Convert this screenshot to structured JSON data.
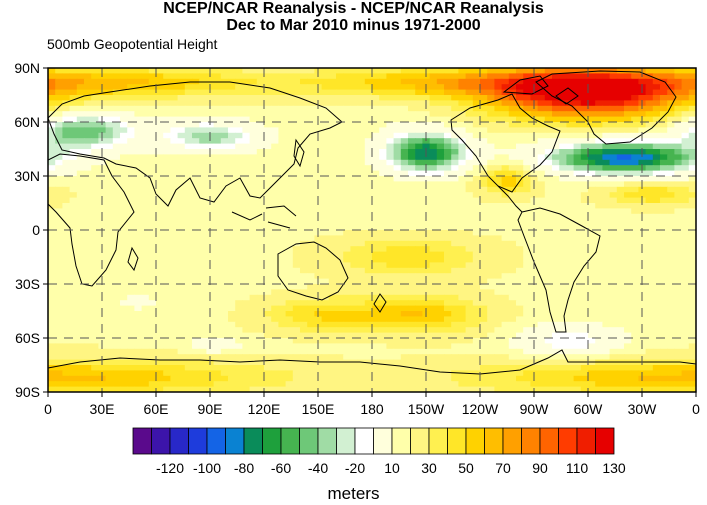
{
  "title_line1": "NCEP/NCAR Reanalysis - NCEP/NCAR Reanalysis",
  "title_line2": "Dec to Mar 2010 minus 1971-2000",
  "subtitle": "500mb Geopotential Height",
  "units": "meters",
  "lat_ticks": [
    "90N",
    "60N",
    "30N",
    "0",
    "30S",
    "60S",
    "90S"
  ],
  "lon_ticks": [
    "0",
    "30E",
    "60E",
    "90E",
    "120E",
    "150E",
    "180",
    "150W",
    "120W",
    "90W",
    "60W",
    "30W",
    "0"
  ],
  "colorbar": {
    "colors": [
      "#5a0a8c",
      "#3c14aa",
      "#2828c8",
      "#1e3cdc",
      "#1464e6",
      "#0a82d2",
      "#0a8c5a",
      "#1ea03c",
      "#46b450",
      "#6ec878",
      "#a0dca5",
      "#d2f0d2",
      "#ffffff",
      "#ffffdc",
      "#ffffaa",
      "#fff582",
      "#fff050",
      "#ffe628",
      "#ffd200",
      "#ffbe00",
      "#ffa000",
      "#ff8200",
      "#ff6400",
      "#ff3c00",
      "#f01e00",
      "#e60000"
    ],
    "labels": [
      "-120",
      "-100",
      "-80",
      "-60",
      "-40",
      "-20",
      "10",
      "30",
      "50",
      "70",
      "90",
      "110",
      "130"
    ]
  },
  "anomaly_field": {
    "background_value": 18,
    "features": [
      {
        "lon": 20,
        "lat": 55,
        "value": -68,
        "radius_lon": 28,
        "radius_lat": 10
      },
      {
        "lon": 90,
        "lat": 52,
        "value": -55,
        "radius_lon": 28,
        "radius_lat": 8
      },
      {
        "lon": 210,
        "lat": 43,
        "value": -98,
        "radius_lon": 22,
        "radius_lat": 11
      },
      {
        "lon": 320,
        "lat": 40,
        "value": -110,
        "radius_lon": 42,
        "radius_lat": 9
      },
      {
        "lon": 300,
        "lat": 76,
        "value": 115,
        "radius_lon": 55,
        "radius_lat": 14
      },
      {
        "lon": 230,
        "lat": 82,
        "value": 45,
        "radius_lon": 90,
        "radius_lat": 8
      },
      {
        "lon": 40,
        "lat": 82,
        "value": 42,
        "radius_lon": 70,
        "radius_lat": 8
      },
      {
        "lon": 290,
        "lat": -62,
        "value": -38,
        "radius_lon": 28,
        "radius_lat": 9
      },
      {
        "lon": 92,
        "lat": -64,
        "value": -25,
        "radius_lon": 14,
        "radius_lat": 4
      },
      {
        "lon": 205,
        "lat": -47,
        "value": 42,
        "radius_lon": 35,
        "radius_lat": 10
      },
      {
        "lon": 150,
        "lat": -47,
        "value": 30,
        "radius_lon": 30,
        "radius_lat": 9
      },
      {
        "lon": 0,
        "lat": -82,
        "value": 45,
        "radius_lon": 120,
        "radius_lat": 10
      },
      {
        "lon": 50,
        "lat": -40,
        "value": -10,
        "radius_lon": 18,
        "radius_lat": 8
      },
      {
        "lon": 200,
        "lat": -15,
        "value": 30,
        "radius_lon": 40,
        "radius_lat": 10
      },
      {
        "lon": 255,
        "lat": 28,
        "value": 38,
        "radius_lon": 15,
        "radius_lat": 8
      },
      {
        "lon": 335,
        "lat": 20,
        "value": 32,
        "radius_lon": 25,
        "radius_lat": 6
      },
      {
        "lon": 185,
        "lat": 62,
        "value": -5,
        "radius_lon": 20,
        "radius_lat": 8
      }
    ]
  }
}
